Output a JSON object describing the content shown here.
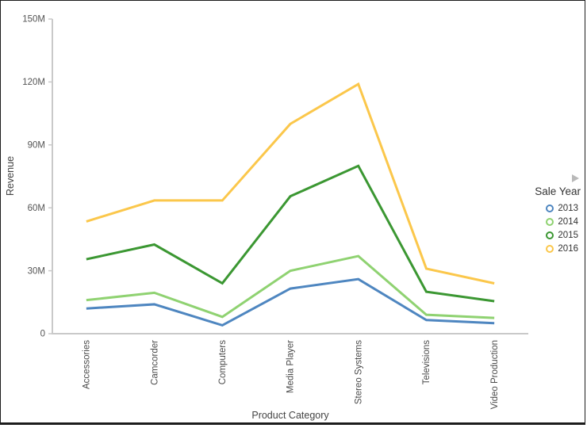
{
  "window": {
    "background": "#ffffff",
    "border_color": "#1c1c1c"
  },
  "chart_data": {
    "type": "line",
    "title": "",
    "xlabel": "Product Category",
    "ylabel": "Revenue",
    "legend_title": "Sale Year",
    "legend_position": "right",
    "grid": false,
    "values_unit": "millions",
    "categories": [
      "Accessories",
      "Camcorder",
      "Computers",
      "Media Player",
      "Stereo Systems",
      "Televisions",
      "Video Production"
    ],
    "y_axis": {
      "min": 0,
      "max": 150,
      "tick_values": [
        0,
        30,
        60,
        90,
        120,
        150
      ],
      "tick_labels": [
        "0",
        "30M",
        "60M",
        "90M",
        "120M",
        "150M"
      ]
    },
    "series": [
      {
        "name": "2013",
        "color": "#4E86C0",
        "values": [
          12,
          14,
          4,
          21.5,
          26,
          6.5,
          5
        ]
      },
      {
        "name": "2014",
        "color": "#8FD271",
        "values": [
          16,
          19.5,
          8,
          30,
          37,
          9,
          7.5
        ]
      },
      {
        "name": "2015",
        "color": "#3B9732",
        "values": [
          35.5,
          42.5,
          24,
          65.5,
          80,
          20,
          15.5
        ]
      },
      {
        "name": "2016",
        "color": "#FBC74B",
        "values": [
          53.5,
          63.5,
          63.5,
          100,
          119,
          31,
          24
        ]
      }
    ]
  },
  "styles": {
    "axis_color": "#c9c9c9",
    "tick_text_color": "#555555",
    "category_text_color": "#4a4a4a",
    "axis_title_color": "#444444",
    "legend_text_color": "#333333",
    "arrow_color": "#b9b9b9"
  }
}
